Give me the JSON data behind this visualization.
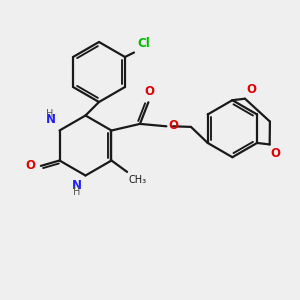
{
  "background_color": "#efefef",
  "bond_color": "#1a1a1a",
  "n_color": "#2020ff",
  "o_color": "#e00000",
  "cl_color": "#00bb00",
  "line_width": 1.6,
  "font_size": 8.5,
  "small_font_size": 7.0,
  "fig_width": 3.0,
  "fig_height": 3.0,
  "dpi": 100,
  "xlim": [
    0,
    10
  ],
  "ylim": [
    0,
    10
  ]
}
